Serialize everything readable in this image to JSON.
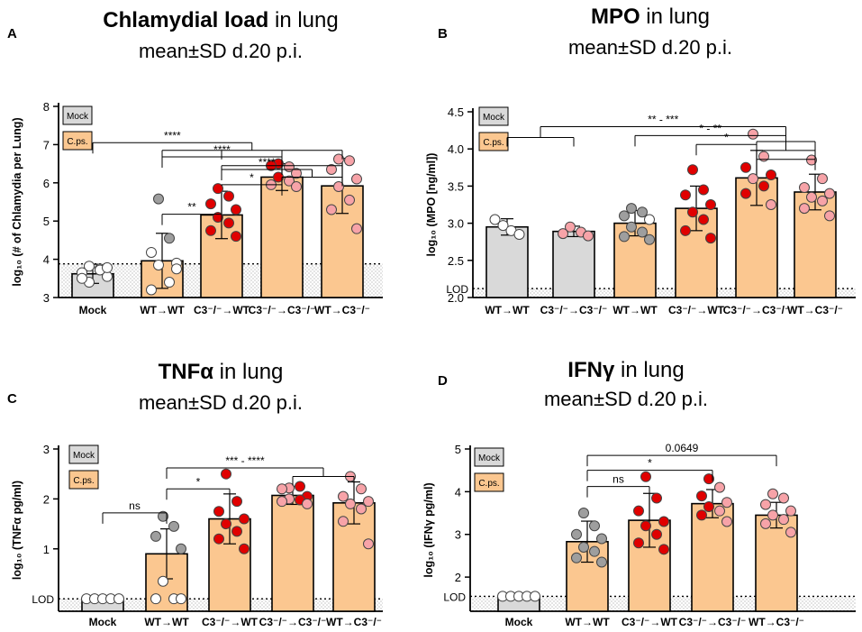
{
  "legend": {
    "mock": "Mock",
    "cps": "C.ps."
  },
  "colors": {
    "mock_bar": "#d9d9d9",
    "cps_bar": "#fbc790",
    "dark_red": "#e00000",
    "light_red": "#f7a3a8",
    "grey_dot": "#9e9e9e",
    "white_dot": "#ffffff",
    "stipple": "#bdbdbd"
  },
  "chart_data": [
    {
      "panel_letter": "A",
      "type": "bar",
      "title_bold": "Chlamydial load",
      "title_rest": " in lung",
      "subtitle": "mean±SD d.20 p.i.",
      "ylabel": "log₁₀ (# of Chlamydia per Lung)",
      "ylim": [
        3,
        8
      ],
      "yticks": [
        "3",
        "4",
        "5",
        "6",
        "7",
        "8"
      ],
      "lod": 3.88,
      "lod_label": "",
      "categories": [
        "Mock",
        "WT→WT",
        "C3⁻/⁻→WT",
        "C3⁻/⁻→C3⁻/⁻",
        "WT→C3⁻/⁻"
      ],
      "bar_kind": [
        "mock",
        "cps",
        "cps",
        "cps",
        "cps"
      ],
      "values": [
        3.62,
        3.96,
        5.16,
        6.15,
        5.92
      ],
      "sd": [
        0.25,
        0.72,
        0.62,
        0.35,
        0.72
      ],
      "points": [
        {
          "c": 0,
          "kind": "white",
          "ys": [
            3.82,
            3.75,
            3.65,
            3.55,
            3.4,
            3.72,
            3.5,
            3.78
          ]
        },
        {
          "c": 1,
          "kind": "mixed",
          "ys": [
            5.58,
            4.55,
            4.18,
            3.9,
            3.85,
            3.4,
            3.2,
            3.75
          ],
          "grey": [
            0,
            1
          ]
        },
        {
          "c": 2,
          "kind": "darkred",
          "ys": [
            5.85,
            5.65,
            5.45,
            5.3,
            5.1,
            4.95,
            4.75,
            4.6
          ]
        },
        {
          "c": 3,
          "kind": "mixed_red",
          "ys": [
            6.5,
            6.42,
            6.45,
            6.25,
            6.15,
            6.05,
            5.95,
            5.9
          ],
          "dark": [
            0,
            2,
            4
          ]
        },
        {
          "c": 4,
          "kind": "lightred",
          "ys": [
            6.62,
            6.58,
            6.35,
            6.1,
            5.9,
            5.55,
            5.3,
            4.8
          ]
        }
      ],
      "sig": [
        {
          "label": "****",
          "level": 7.05,
          "left": [
            0
          ],
          "right": [
            1,
            2,
            3,
            4
          ],
          "rightLevel": 6.85
        },
        {
          "label": "****",
          "level": 6.68,
          "left": [
            1
          ],
          "right": [
            2,
            3,
            4
          ],
          "rightLevel": 6.45
        },
        {
          "label": "****",
          "level": 6.35,
          "left": [
            2
          ],
          "right": [
            3,
            4
          ],
          "rightLevel": 6.15
        },
        {
          "label": "*",
          "level": 5.95,
          "left": [
            2
          ],
          "right": [
            3
          ]
        },
        {
          "label": "**",
          "level": 5.18,
          "left": [
            1
          ],
          "right": [
            2
          ]
        }
      ]
    },
    {
      "panel_letter": "B",
      "type": "bar",
      "title_bold": "MPO",
      "title_rest": " in lung",
      "subtitle": "mean±SD d.20 p.i.",
      "ylabel": "log₁₀ (MPO [ng/ml])",
      "ylim": [
        2.0,
        4.5
      ],
      "yticks": [
        "2.0",
        "2.5",
        "3.0",
        "3.5",
        "4.0",
        "4.5"
      ],
      "lod": 2.12,
      "lod_label": "LOD",
      "categories": [
        "WT→WT",
        "C3⁻/⁻→C3⁻/⁻",
        "WT→WT",
        "C3⁻/⁻→WT",
        "C3⁻/⁻→C3⁻/⁻",
        "WT→C3⁻/⁻"
      ],
      "bar_kind": [
        "mock",
        "mock",
        "cps",
        "cps",
        "cps",
        "cps"
      ],
      "values": [
        2.95,
        2.89,
        3.0,
        3.2,
        3.61,
        3.42
      ],
      "sd": [
        0.11,
        0.07,
        0.17,
        0.3,
        0.37,
        0.24
      ],
      "points": [
        {
          "c": 0,
          "kind": "white",
          "ys": [
            3.05,
            2.97,
            2.9,
            2.85
          ]
        },
        {
          "c": 1,
          "kind": "lightred",
          "ys": [
            2.95,
            2.88,
            2.86,
            2.83
          ]
        },
        {
          "c": 2,
          "kind": "mixed",
          "ys": [
            3.2,
            3.15,
            3.1,
            3.05,
            2.95,
            2.88,
            2.82,
            2.78
          ],
          "grey": [
            0,
            1,
            2,
            4,
            5,
            6,
            7
          ]
        },
        {
          "c": 3,
          "kind": "darkred",
          "ys": [
            3.72,
            3.45,
            3.38,
            3.25,
            3.15,
            3.05,
            2.9,
            2.8
          ]
        },
        {
          "c": 4,
          "kind": "mixed_red",
          "ys": [
            4.2,
            3.9,
            3.75,
            3.65,
            3.6,
            3.5,
            3.4,
            3.25
          ],
          "dark": [
            2,
            3,
            5,
            6
          ]
        },
        {
          "c": 5,
          "kind": "lightred",
          "ys": [
            3.85,
            3.6,
            3.48,
            3.4,
            3.35,
            3.3,
            3.2,
            3.1
          ]
        }
      ],
      "sig": [
        {
          "label": "** - ***",
          "level": 4.3,
          "left": [
            0,
            1
          ],
          "right": [
            4,
            5
          ],
          "rightLevel": 4.1,
          "leftLevel": 3.22
        },
        {
          "label": "* - **",
          "level": 4.18,
          "left": [
            2
          ],
          "right": [
            4,
            5
          ],
          "rightLevel": 3.98
        },
        {
          "label": "*",
          "level": 4.06,
          "left": [
            3
          ],
          "right": [
            4
          ]
        },
        {
          "label": "",
          "level": 3.86,
          "left": [
            4
          ],
          "right": [
            5
          ]
        }
      ]
    },
    {
      "panel_letter": "C",
      "type": "bar",
      "title_bold": "TNFα",
      "title_rest": " in lung",
      "subtitle": "mean±SD d.20 p.i.",
      "ylabel": "log₁₀ (TNFα pg/ml)",
      "ylim": [
        -0.25,
        3
      ],
      "yticks": [
        "1",
        "2",
        "3"
      ],
      "lod": 0.0,
      "lod_label": "LOD",
      "categories": [
        "Mock",
        "WT→WT",
        "C3⁻/⁻→WT",
        "C3⁻/⁻→C3⁻/⁻",
        "WT→C3⁻/⁻"
      ],
      "bar_kind": [
        "mock",
        "cps",
        "cps",
        "cps",
        "cps"
      ],
      "values": [
        0.0,
        0.9,
        1.6,
        2.07,
        1.92
      ],
      "sd": [
        0.0,
        0.5,
        0.5,
        0.18,
        0.42
      ],
      "points": [
        {
          "c": 0,
          "kind": "white",
          "ys": [
            0,
            0,
            0,
            0,
            0
          ]
        },
        {
          "c": 1,
          "kind": "mixed",
          "ys": [
            1.65,
            1.45,
            1.25,
            1.0,
            0.35,
            0.0,
            0.0,
            0.0
          ],
          "grey": [
            0,
            1,
            2,
            3
          ]
        },
        {
          "c": 2,
          "kind": "darkred",
          "ys": [
            2.5,
            1.95,
            1.75,
            1.6,
            1.5,
            1.35,
            1.2,
            1.0
          ]
        },
        {
          "c": 3,
          "kind": "mixed_red",
          "ys": [
            2.22,
            2.25,
            2.2,
            2.05,
            2.0,
            1.98,
            1.95,
            1.9
          ],
          "dark": [
            1,
            3,
            5
          ]
        },
        {
          "c": 4,
          "kind": "lightred",
          "ys": [
            2.45,
            2.2,
            2.05,
            1.95,
            1.9,
            1.8,
            1.55,
            1.1
          ]
        }
      ],
      "sig": [
        {
          "label": "*** - ****",
          "level": 2.62,
          "left": [
            1
          ],
          "right": [
            3,
            4
          ],
          "rightLevel": 2.45
        },
        {
          "label": "*",
          "level": 2.2,
          "left": [
            1
          ],
          "right": [
            2
          ]
        },
        {
          "label": "ns",
          "level": 1.72,
          "left": [
            0
          ],
          "right": [
            1
          ]
        }
      ]
    },
    {
      "panel_letter": "D",
      "type": "bar",
      "title_bold": "IFNγ",
      "title_rest": " in lung",
      "subtitle": "mean±SD d.20 p.i.",
      "ylabel": "log₁₀ (IFNγ pg/ml)",
      "ylim": [
        1.2,
        5
      ],
      "yticks": [
        "2",
        "3",
        "4",
        "5"
      ],
      "lod": 1.55,
      "lod_label": "LOD",
      "categories": [
        "Mock",
        "WT→WT",
        "C3⁻/⁻→WT",
        "C3⁻/⁻→C3⁻/⁻",
        "WT→C3⁻/⁻"
      ],
      "bar_kind": [
        "mock",
        "cps",
        "cps",
        "cps",
        "cps"
      ],
      "values": [
        1.55,
        2.83,
        3.33,
        3.72,
        3.45
      ],
      "sd": [
        0.0,
        0.48,
        0.63,
        0.33,
        0.3
      ],
      "points": [
        {
          "c": 0,
          "kind": "white",
          "ys": [
            1.55,
            1.55,
            1.55,
            1.55,
            1.55
          ]
        },
        {
          "c": 1,
          "kind": "mixed",
          "ys": [
            3.5,
            3.2,
            3.0,
            2.9,
            2.7,
            2.6,
            2.45,
            2.35
          ],
          "grey": [
            0,
            1,
            2,
            3,
            4,
            5,
            6,
            7
          ]
        },
        {
          "c": 2,
          "kind": "darkred",
          "ys": [
            4.35,
            3.85,
            3.55,
            3.3,
            3.2,
            3.0,
            2.8,
            2.65
          ]
        },
        {
          "c": 3,
          "kind": "mixed_red",
          "ys": [
            4.3,
            4.1,
            3.9,
            3.75,
            3.65,
            3.55,
            3.45,
            3.3
          ],
          "dark": [
            0,
            2,
            4,
            6
          ]
        },
        {
          "c": 4,
          "kind": "lightred",
          "ys": [
            3.95,
            3.85,
            3.7,
            3.55,
            3.45,
            3.35,
            3.25,
            3.05
          ]
        }
      ],
      "sig": [
        {
          "label": "0.0649",
          "level": 4.85,
          "left": [
            1
          ],
          "right": [
            4
          ]
        },
        {
          "label": "*",
          "level": 4.5,
          "left": [
            1
          ],
          "right": [
            3
          ]
        },
        {
          "label": "ns",
          "level": 4.12,
          "left": [
            1
          ],
          "right": [
            2
          ]
        }
      ]
    }
  ]
}
